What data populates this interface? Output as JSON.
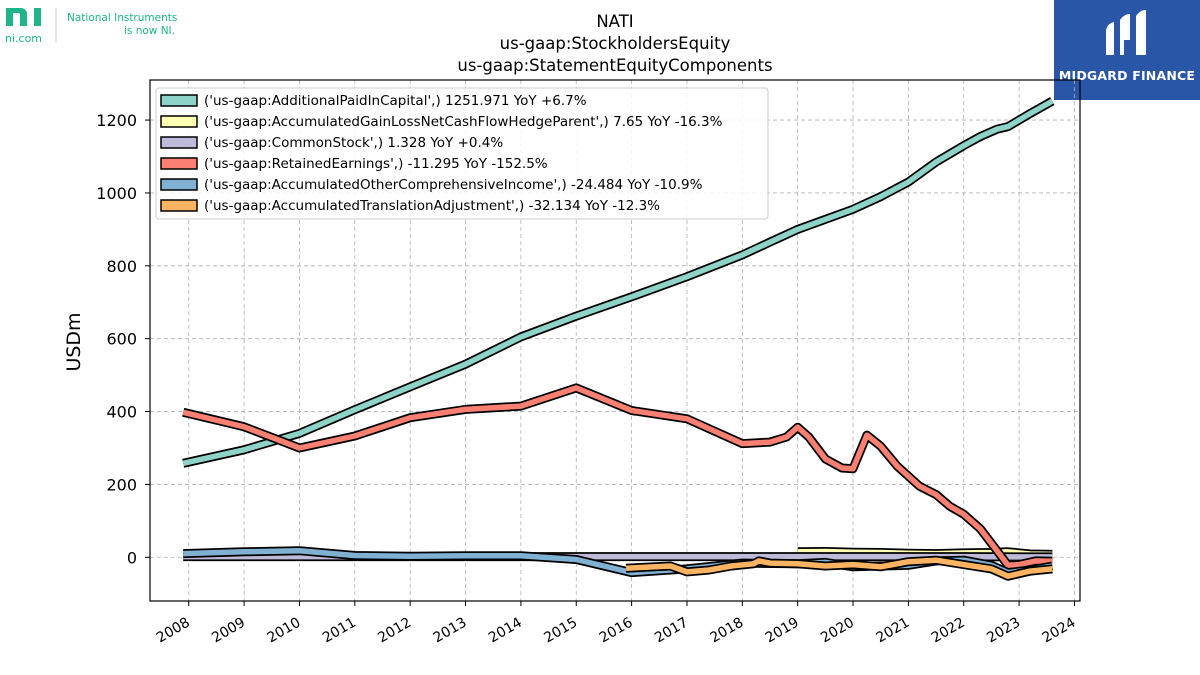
{
  "branding": {
    "left_logo_mark": "ni",
    "left_logo_sub": "ni.com",
    "left_logo_tagline_1": "National Instruments",
    "left_logo_tagline_2": "is now NI.",
    "right_logo_text": "MIDGARD FINANCE",
    "colors": {
      "ni_green": "#1fb48a",
      "midgard_blue": "#2a56a8"
    }
  },
  "chart_data": {
    "type": "line",
    "title_lines": [
      "NATI",
      "us-gaap:StockholdersEquity",
      "us-gaap:StatementEquityComponents"
    ],
    "xlabel": "",
    "ylabel": "USDm",
    "xlim": [
      2007.3,
      2024.1
    ],
    "ylim": [
      -120,
      1310
    ],
    "yticks": [
      0,
      200,
      400,
      600,
      800,
      1000,
      1200
    ],
    "xticks": [
      "2008",
      "2009",
      "2010",
      "2011",
      "2012",
      "2013",
      "2014",
      "2015",
      "2016",
      "2017",
      "2018",
      "2019",
      "2020",
      "2021",
      "2022",
      "2023",
      "2024"
    ],
    "grid": true,
    "legend_position": "top-left",
    "series": [
      {
        "name": "('us-gaap:AdditionalPaidInCapital',) 1251.971 YoY +6.7%",
        "color": "#8dd3c7",
        "points": [
          [
            2007.9,
            258
          ],
          [
            2009,
            295
          ],
          [
            2010,
            340
          ],
          [
            2011,
            405
          ],
          [
            2012,
            468
          ],
          [
            2013,
            530
          ],
          [
            2014,
            605
          ],
          [
            2015,
            662
          ],
          [
            2016,
            715
          ],
          [
            2017,
            770
          ],
          [
            2018,
            830
          ],
          [
            2018.5,
            865
          ],
          [
            2019,
            900
          ],
          [
            2020,
            955
          ],
          [
            2020.5,
            990
          ],
          [
            2021,
            1030
          ],
          [
            2021.5,
            1085
          ],
          [
            2022,
            1130
          ],
          [
            2022.3,
            1155
          ],
          [
            2022.6,
            1175
          ],
          [
            2022.8,
            1182
          ],
          [
            2023.2,
            1218
          ],
          [
            2023.6,
            1252
          ]
        ]
      },
      {
        "name": "('us-gaap:AccumulatedGainLossNetCashFlowHedgeParent',) 7.65 YoY -16.3%",
        "color": "#ffffb3",
        "points": [
          [
            2019,
            15
          ],
          [
            2019.5,
            16
          ],
          [
            2020,
            14
          ],
          [
            2020.5,
            13
          ],
          [
            2021,
            11
          ],
          [
            2021.5,
            10
          ],
          [
            2022,
            12
          ],
          [
            2022.5,
            13
          ],
          [
            2022.8,
            15
          ],
          [
            2023.2,
            9
          ],
          [
            2023.6,
            8
          ]
        ]
      },
      {
        "name": "('us-gaap:CommonStock',) 1.328 YoY +0.4%",
        "color": "#bebada",
        "points": [
          [
            2007.9,
            2
          ],
          [
            2010,
            2
          ],
          [
            2012,
            2
          ],
          [
            2014,
            2
          ],
          [
            2016,
            2
          ],
          [
            2018,
            2
          ],
          [
            2020,
            2
          ],
          [
            2022,
            2
          ],
          [
            2023,
            1
          ],
          [
            2023.6,
            1
          ]
        ]
      },
      {
        "name": "('us-gaap:RetainedEarnings',) -11.295 YoY -152.5%",
        "color": "#fb8072",
        "points": [
          [
            2007.9,
            398
          ],
          [
            2009,
            358
          ],
          [
            2010,
            300
          ],
          [
            2011,
            333
          ],
          [
            2012,
            383
          ],
          [
            2013,
            406
          ],
          [
            2014,
            415
          ],
          [
            2015,
            465
          ],
          [
            2016,
            403
          ],
          [
            2017,
            380
          ],
          [
            2018,
            312
          ],
          [
            2018.5,
            316
          ],
          [
            2018.8,
            330
          ],
          [
            2019,
            357
          ],
          [
            2019.2,
            330
          ],
          [
            2019.5,
            270
          ],
          [
            2019.8,
            245
          ],
          [
            2020,
            243
          ],
          [
            2020.25,
            335
          ],
          [
            2020.5,
            305
          ],
          [
            2020.8,
            250
          ],
          [
            2021.2,
            195
          ],
          [
            2021.5,
            172
          ],
          [
            2021.75,
            140
          ],
          [
            2022,
            118
          ],
          [
            2022.3,
            78
          ],
          [
            2022.6,
            18
          ],
          [
            2022.8,
            -22
          ],
          [
            2023,
            -20
          ],
          [
            2023.3,
            -10
          ],
          [
            2023.6,
            -11
          ]
        ]
      },
      {
        "name": "('us-gaap:AccumulatedOtherComprehensiveIncome',) -24.484 YoY -10.9%",
        "color": "#80b1d3",
        "points": [
          [
            2007.9,
            10
          ],
          [
            2009,
            15
          ],
          [
            2010,
            18
          ],
          [
            2011,
            5
          ],
          [
            2012,
            3
          ],
          [
            2013,
            4
          ],
          [
            2014,
            4
          ],
          [
            2015,
            -6
          ],
          [
            2016,
            -42
          ],
          [
            2017,
            -32
          ],
          [
            2018,
            -16
          ],
          [
            2019,
            -18
          ],
          [
            2019.5,
            -14
          ],
          [
            2020,
            -26
          ],
          [
            2021,
            -22
          ],
          [
            2021.5,
            -10
          ],
          [
            2022,
            -8
          ],
          [
            2022.5,
            -22
          ],
          [
            2022.8,
            -42
          ],
          [
            2023.2,
            -35
          ],
          [
            2023.6,
            -24
          ]
        ]
      },
      {
        "name": "('us-gaap:AccumulatedTranslationAdjustment',) -32.134 YoY -12.3%",
        "color": "#fdb462",
        "points": [
          [
            2015.9,
            -30
          ],
          [
            2016.7,
            -24
          ],
          [
            2017,
            -40
          ],
          [
            2017.4,
            -35
          ],
          [
            2017.8,
            -24
          ],
          [
            2018.2,
            -18
          ],
          [
            2018.3,
            -10
          ],
          [
            2018.5,
            -16
          ],
          [
            2019,
            -18
          ],
          [
            2019.5,
            -24
          ],
          [
            2020,
            -20
          ],
          [
            2020.5,
            -26
          ],
          [
            2021,
            -12
          ],
          [
            2021.5,
            -8
          ],
          [
            2022,
            -20
          ],
          [
            2022.5,
            -32
          ],
          [
            2022.8,
            -52
          ],
          [
            2023.2,
            -38
          ],
          [
            2023.6,
            -32
          ]
        ]
      }
    ]
  }
}
